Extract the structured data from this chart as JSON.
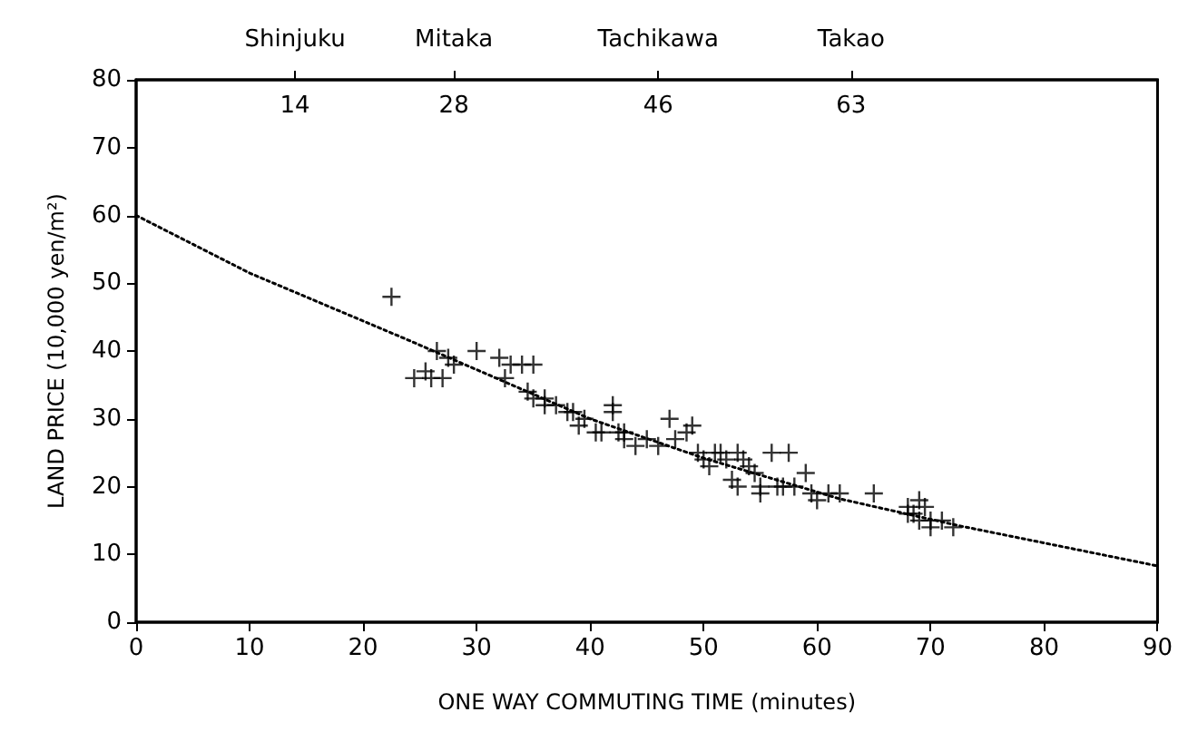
{
  "chart_data": {
    "type": "scatter",
    "xlabel": "ONE WAY COMMUTING TIME (minutes)",
    "ylabel": "LAND PRICE (10,000 yen/m²)",
    "xlim": [
      0,
      90
    ],
    "xticks": [
      0,
      10,
      20,
      30,
      40,
      50,
      60,
      70,
      80,
      90
    ],
    "ylim": [
      0,
      80
    ],
    "yticks": [
      0,
      10,
      20,
      30,
      40,
      50,
      60,
      70,
      80
    ],
    "x2lim": [
      0,
      90
    ],
    "x2ticks": [
      14,
      28,
      46,
      63
    ],
    "annotations": [
      "Shinjuku",
      "Mitaka",
      "Tachikawa",
      "Takao"
    ],
    "grid": false,
    "series": [
      {
        "marker": "cross",
        "color": "#000000",
        "x": [
          22.5,
          24.5,
          25.5,
          26,
          26.5,
          27,
          27.5,
          28,
          30,
          32,
          32.5,
          33,
          34,
          34.5,
          35,
          35,
          36,
          36,
          37,
          38,
          38.5,
          39,
          39.5,
          40.5,
          41,
          42,
          42,
          42.5,
          43,
          43,
          44,
          45,
          46,
          47,
          47.5,
          48.5,
          49,
          49.5,
          50,
          50.5,
          51,
          51.5,
          52,
          52.5,
          53,
          53,
          53.5,
          54,
          54.5,
          55,
          55,
          56,
          56.5,
          57,
          57.5,
          58,
          59,
          59.5,
          60,
          61,
          62,
          65,
          68,
          68.5,
          69,
          69,
          69.5,
          70,
          70,
          71,
          72,
          68
        ],
        "values": [
          48,
          36,
          37,
          36,
          40,
          36,
          39,
          38,
          40,
          39,
          36,
          38,
          38,
          34,
          38,
          33,
          33,
          32,
          32,
          31,
          31,
          29,
          30,
          28,
          28,
          32,
          31,
          28,
          27,
          28,
          26,
          27,
          26,
          30,
          27,
          28,
          29,
          25,
          24,
          23,
          25,
          25,
          24,
          21,
          20,
          25,
          24,
          23,
          22,
          20,
          19,
          25,
          20,
          20,
          25,
          20,
          22,
          19,
          18,
          19,
          19,
          19,
          17,
          16,
          18,
          15,
          17,
          15,
          14,
          15,
          14,
          16
        ]
      },
      {
        "type": "line",
        "marker": "none",
        "line_style": "dotted",
        "color": "#000000",
        "x": [
          0,
          10,
          24,
          40,
          50,
          62,
          72.6,
          90
        ],
        "values": [
          60,
          51.5,
          41.6,
          30,
          24.2,
          18.2,
          14.2,
          8.3
        ]
      }
    ]
  }
}
